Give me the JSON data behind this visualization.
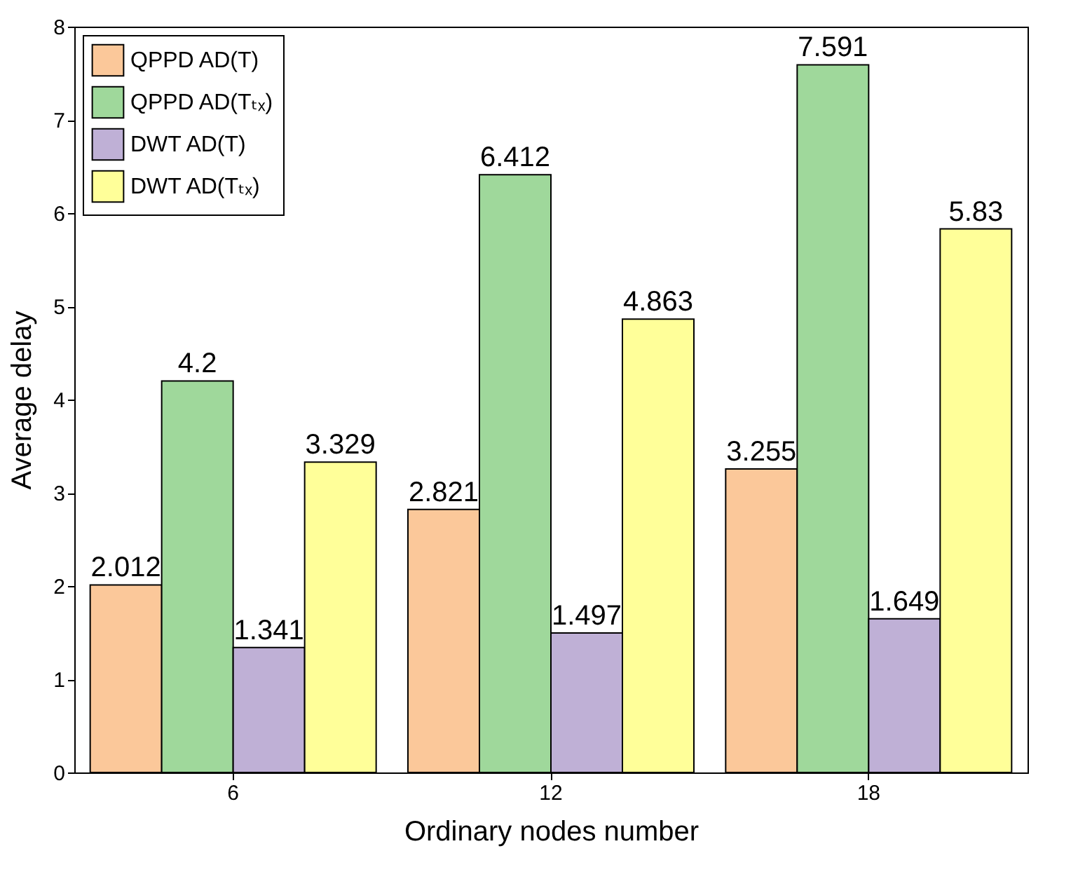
{
  "chart_data": {
    "type": "bar",
    "xlabel": "Ordinary nodes number",
    "ylabel": "Average delay",
    "categories": [
      "6",
      "12",
      "18"
    ],
    "series": [
      {
        "name": "QPPD AD(T)",
        "color": "#fbc89a",
        "values": [
          2.012,
          2.821,
          3.255
        ]
      },
      {
        "name": "QPPD AD(Tₜₓ)",
        "color": "#9fd89b",
        "values": [
          4.2,
          6.412,
          7.591
        ]
      },
      {
        "name": "DWT AD(T)",
        "color": "#bfb0d6",
        "values": [
          1.341,
          1.497,
          1.649
        ]
      },
      {
        "name": "DWT AD(Tₜₓ)",
        "color": "#ffff99",
        "values": [
          3.329,
          4.863,
          5.83
        ]
      }
    ],
    "ylim": [
      0,
      8
    ],
    "yticks": [
      0,
      1,
      2,
      3,
      4,
      5,
      6,
      7,
      8
    ],
    "data_labels": true,
    "legend": "top left",
    "grid": false
  }
}
